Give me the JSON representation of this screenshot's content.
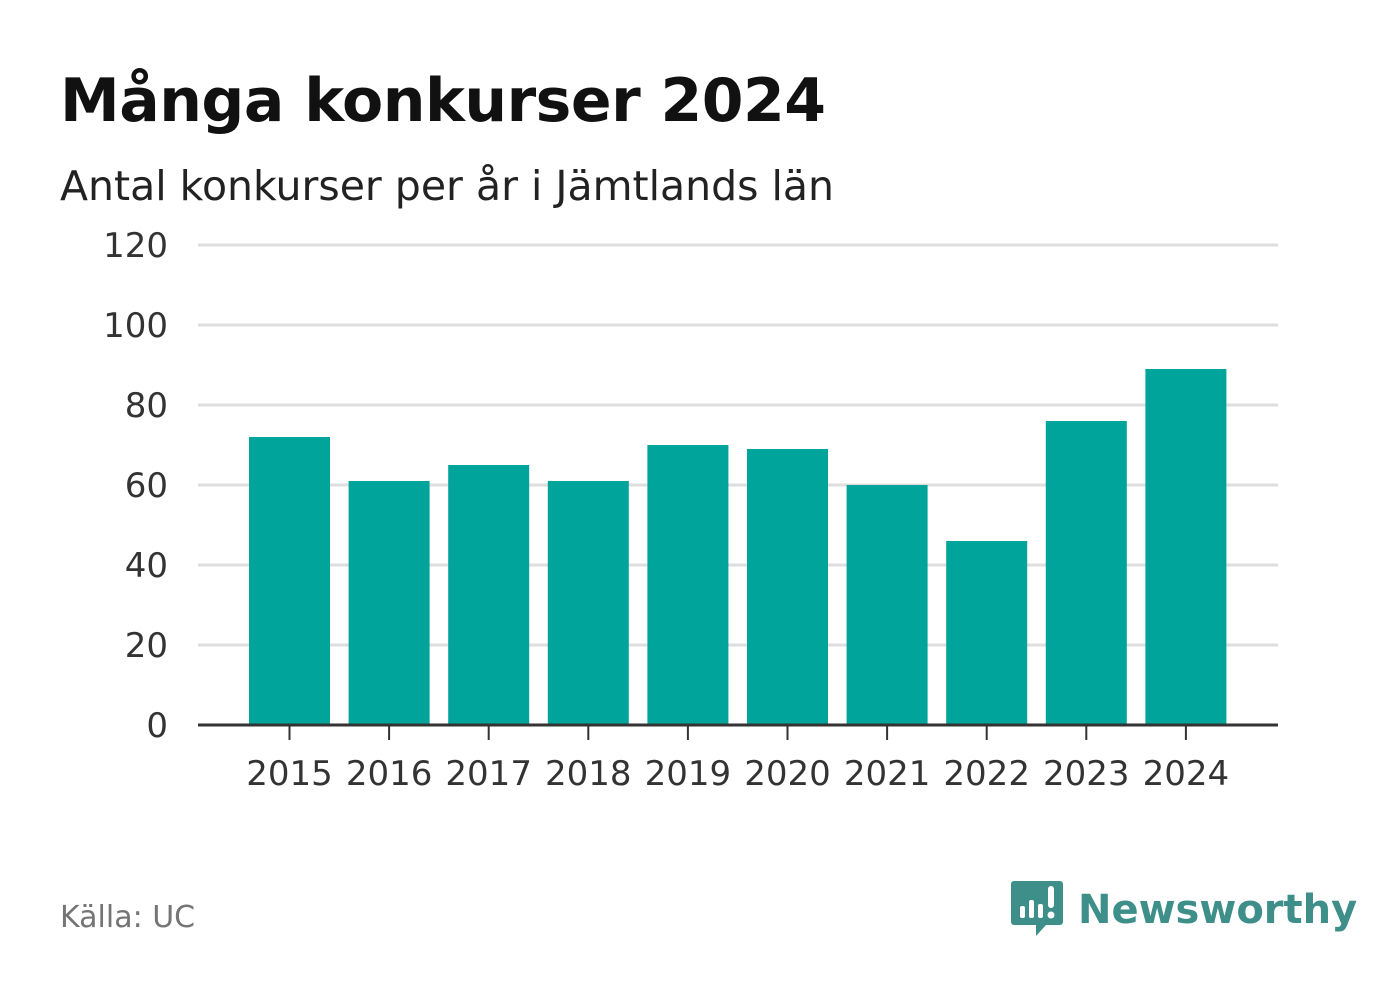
{
  "title": "Många konkurser 2024",
  "subtitle": "Antal konkurser per år i Jämtlands län",
  "source": "Källa: UC",
  "brand": {
    "name": "Newsworthy",
    "icon": "newsworthy-logo-icon",
    "color": "#3e8f8a"
  },
  "colors": {
    "bar": "#00a49a",
    "grid": "#dedede",
    "axis": "#333333"
  },
  "chart_data": {
    "type": "bar",
    "title": "Många konkurser 2024",
    "subtitle": "Antal konkurser per år i Jämtlands län",
    "xlabel": "",
    "ylabel": "",
    "categories": [
      "2015",
      "2016",
      "2017",
      "2018",
      "2019",
      "2020",
      "2021",
      "2022",
      "2023",
      "2024"
    ],
    "values": [
      72,
      61,
      65,
      61,
      70,
      69,
      60,
      46,
      76,
      89
    ],
    "ylim": [
      0,
      120
    ],
    "yticks": [
      0,
      20,
      40,
      60,
      80,
      100,
      120
    ],
    "grid": true,
    "legend": "none"
  }
}
